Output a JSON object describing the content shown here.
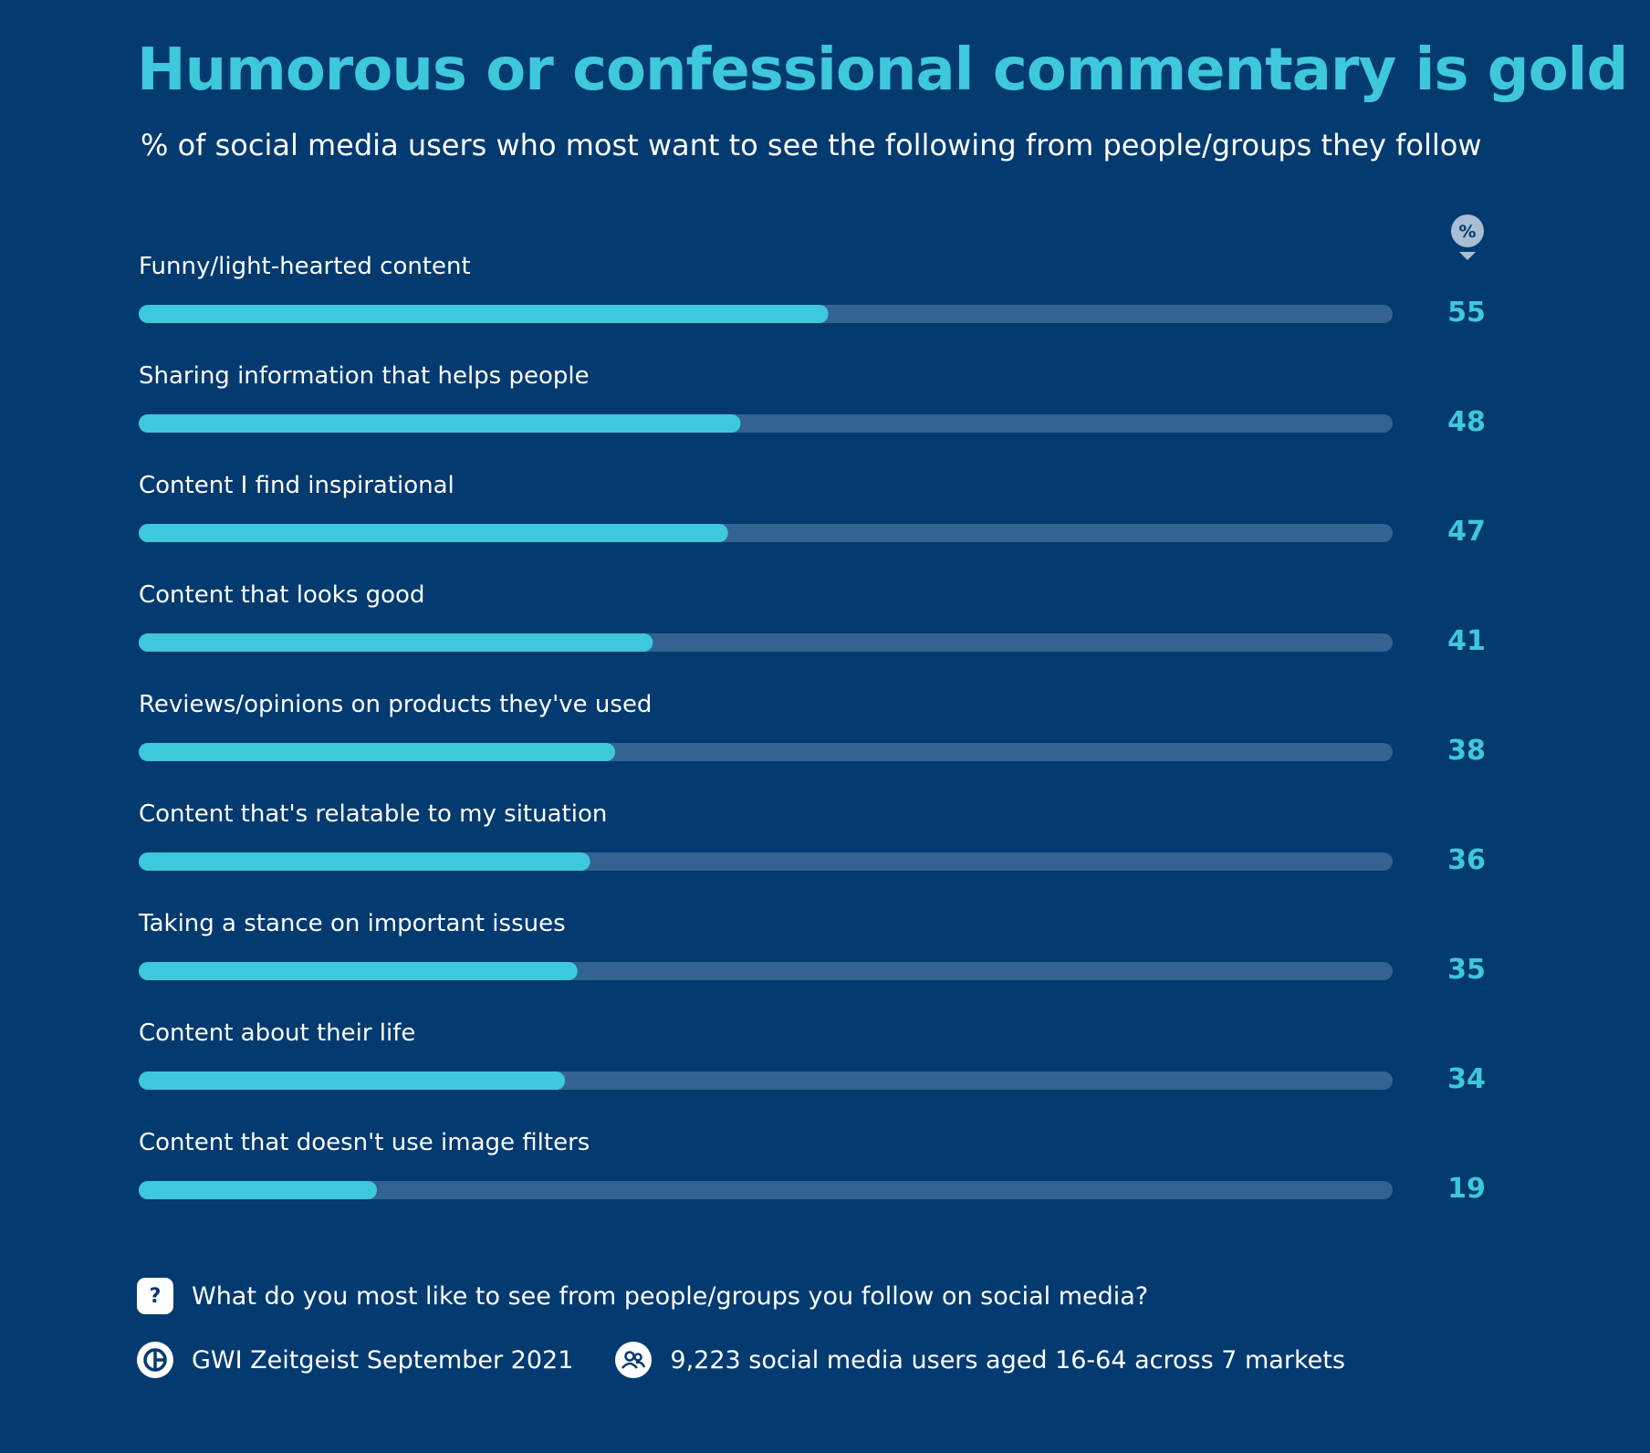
{
  "chart_data": {
    "type": "bar",
    "orientation": "horizontal",
    "title": "Humorous or confessional commentary is gold",
    "subtitle": "% of social media users who most want to see the following from people/groups they follow",
    "unit_label": "%",
    "xlim": [
      0,
      100
    ],
    "categories": [
      "Funny/light-hearted content",
      "Sharing information that helps people",
      "Content I find inspirational",
      "Content that looks good",
      "Reviews/opinions on products they've used",
      "Content that's relatable to my situation",
      "Taking a stance on important issues",
      "Content about their life",
      "Content that doesn't use image filters"
    ],
    "values": [
      55,
      48,
      47,
      41,
      38,
      36,
      35,
      34,
      19
    ],
    "colors": {
      "background": "#033a70",
      "bar_fill": "#3ec8db",
      "bar_track": "#336390",
      "value_text": "#3ec8db"
    }
  },
  "footer": {
    "question_icon": "question-icon",
    "question_glyph": "?",
    "question": "What do you most like to see from people/groups you follow on social media?",
    "source_icon": "gwi-logo-icon",
    "source": "GWI Zeitgeist September 2021",
    "sample_icon": "users-icon",
    "sample": "9,223 social media users aged 16-64 across 7 markets"
  }
}
